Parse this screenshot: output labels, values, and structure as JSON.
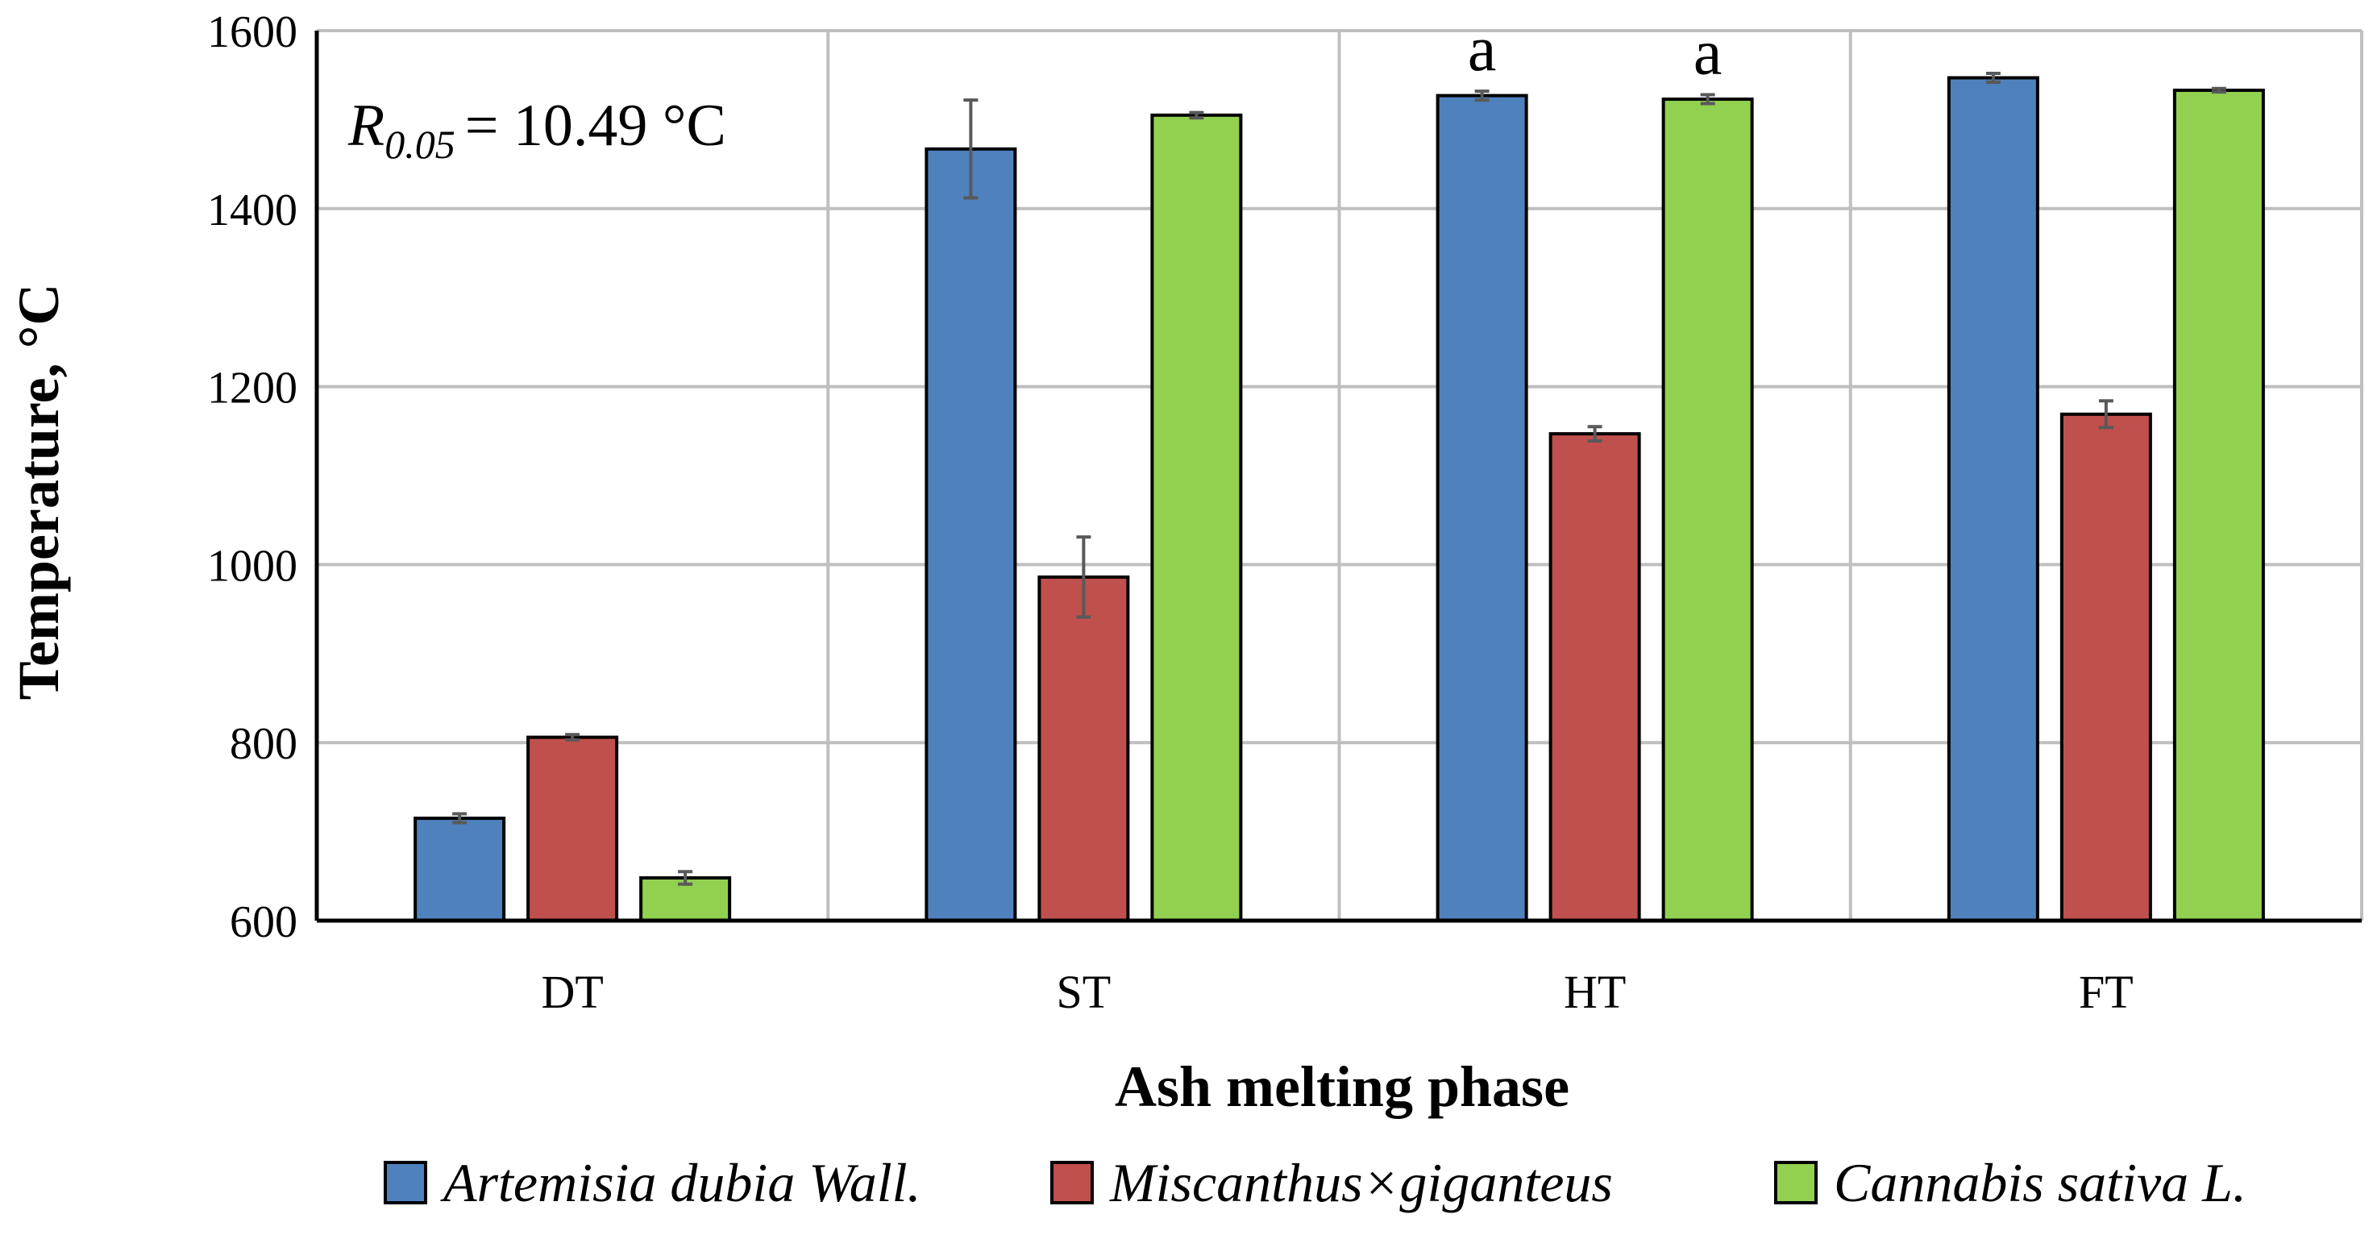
{
  "chart_data": {
    "type": "bar",
    "categories": [
      "DT",
      "ST",
      "HT",
      "FT"
    ],
    "series": [
      {
        "name": "Artemisia dubia Wall.",
        "color": "#4f81bd",
        "values": [
          715,
          1467,
          1527,
          1547
        ],
        "errors": [
          5,
          55,
          5,
          5
        ]
      },
      {
        "name": "Miscanthus×giganteus",
        "color": "#c0504d",
        "values": [
          806,
          986,
          1147,
          1169
        ],
        "errors": [
          3,
          45,
          8,
          15
        ]
      },
      {
        "name": "Cannabis sativa L.",
        "color": "#92d050",
        "values": [
          648,
          1505,
          1523,
          1533
        ],
        "errors": [
          7,
          3,
          5,
          2
        ]
      }
    ],
    "ylabel": "Temperature, °C",
    "xlabel": "Ash melting phase",
    "ylim": [
      600,
      1600
    ],
    "yticks": [
      600,
      800,
      1000,
      1200,
      1400,
      1600
    ],
    "grid": true,
    "legend_position": "bottom",
    "annotations": {
      "lsd_symbol": "R",
      "lsd_subscript": "0.05",
      "lsd_value": "= 10.49 °C",
      "letters": [
        {
          "category": "HT",
          "series": "Artemisia dubia Wall.",
          "text": "a"
        },
        {
          "category": "HT",
          "series": "Cannabis sativa L.",
          "text": "a"
        }
      ]
    }
  }
}
